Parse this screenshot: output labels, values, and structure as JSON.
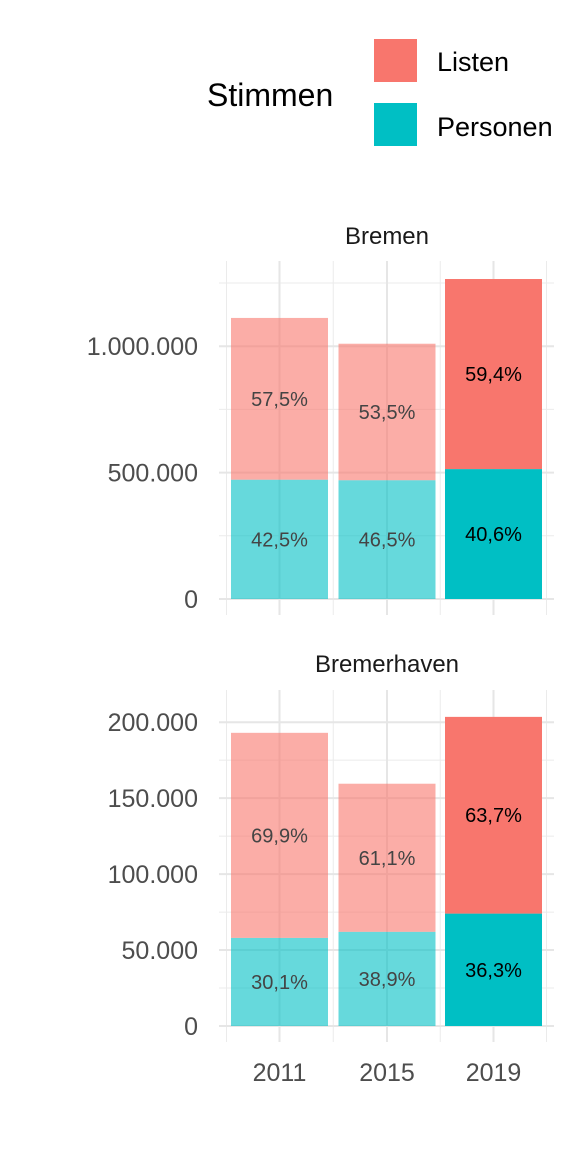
{
  "legend": {
    "title": "Stimmen",
    "items": [
      {
        "label": "Listen",
        "color": "#F8766D"
      },
      {
        "label": "Personen",
        "color": "#00BFC4"
      }
    ]
  },
  "chart_data": {
    "type": "bar",
    "stacked": true,
    "categories": [
      "2011",
      "2015",
      "2019"
    ],
    "highlight_category": "2019",
    "faded_opacity": 0.6,
    "colors": {
      "Listen": "#F8766D",
      "Personen": "#00BFC4"
    },
    "grid": true,
    "legend_position": "top-right",
    "panels": [
      {
        "title": "Bremen",
        "ylim": [
          0,
          1270000
        ],
        "yticks": [
          0,
          500000,
          1000000
        ],
        "ytick_labels": [
          "0",
          "500.000",
          "1.000.000"
        ],
        "series": [
          {
            "name": "Personen",
            "values": [
              472000,
              470000,
              514000
            ],
            "labels": [
              "42,5%",
              "46,5%",
              "40,6%"
            ]
          },
          {
            "name": "Listen",
            "values": [
              640000,
              540000,
              752000
            ],
            "labels": [
              "57,5%",
              "53,5%",
              "59,4%"
            ]
          }
        ]
      },
      {
        "title": "Bremerhaven",
        "ylim": [
          0,
          210000
        ],
        "yticks": [
          0,
          50000,
          100000,
          150000,
          200000
        ],
        "ytick_labels": [
          "0",
          "50.000",
          "100.000",
          "150.000",
          "200.000"
        ],
        "series": [
          {
            "name": "Personen",
            "values": [
              58000,
              62000,
              74000
            ],
            "labels": [
              "30,1%",
              "38,9%",
              "36,3%"
            ]
          },
          {
            "name": "Listen",
            "values": [
              135000,
              97500,
              129500
            ],
            "labels": [
              "69,9%",
              "61,1%",
              "63,7%"
            ]
          }
        ]
      }
    ]
  }
}
